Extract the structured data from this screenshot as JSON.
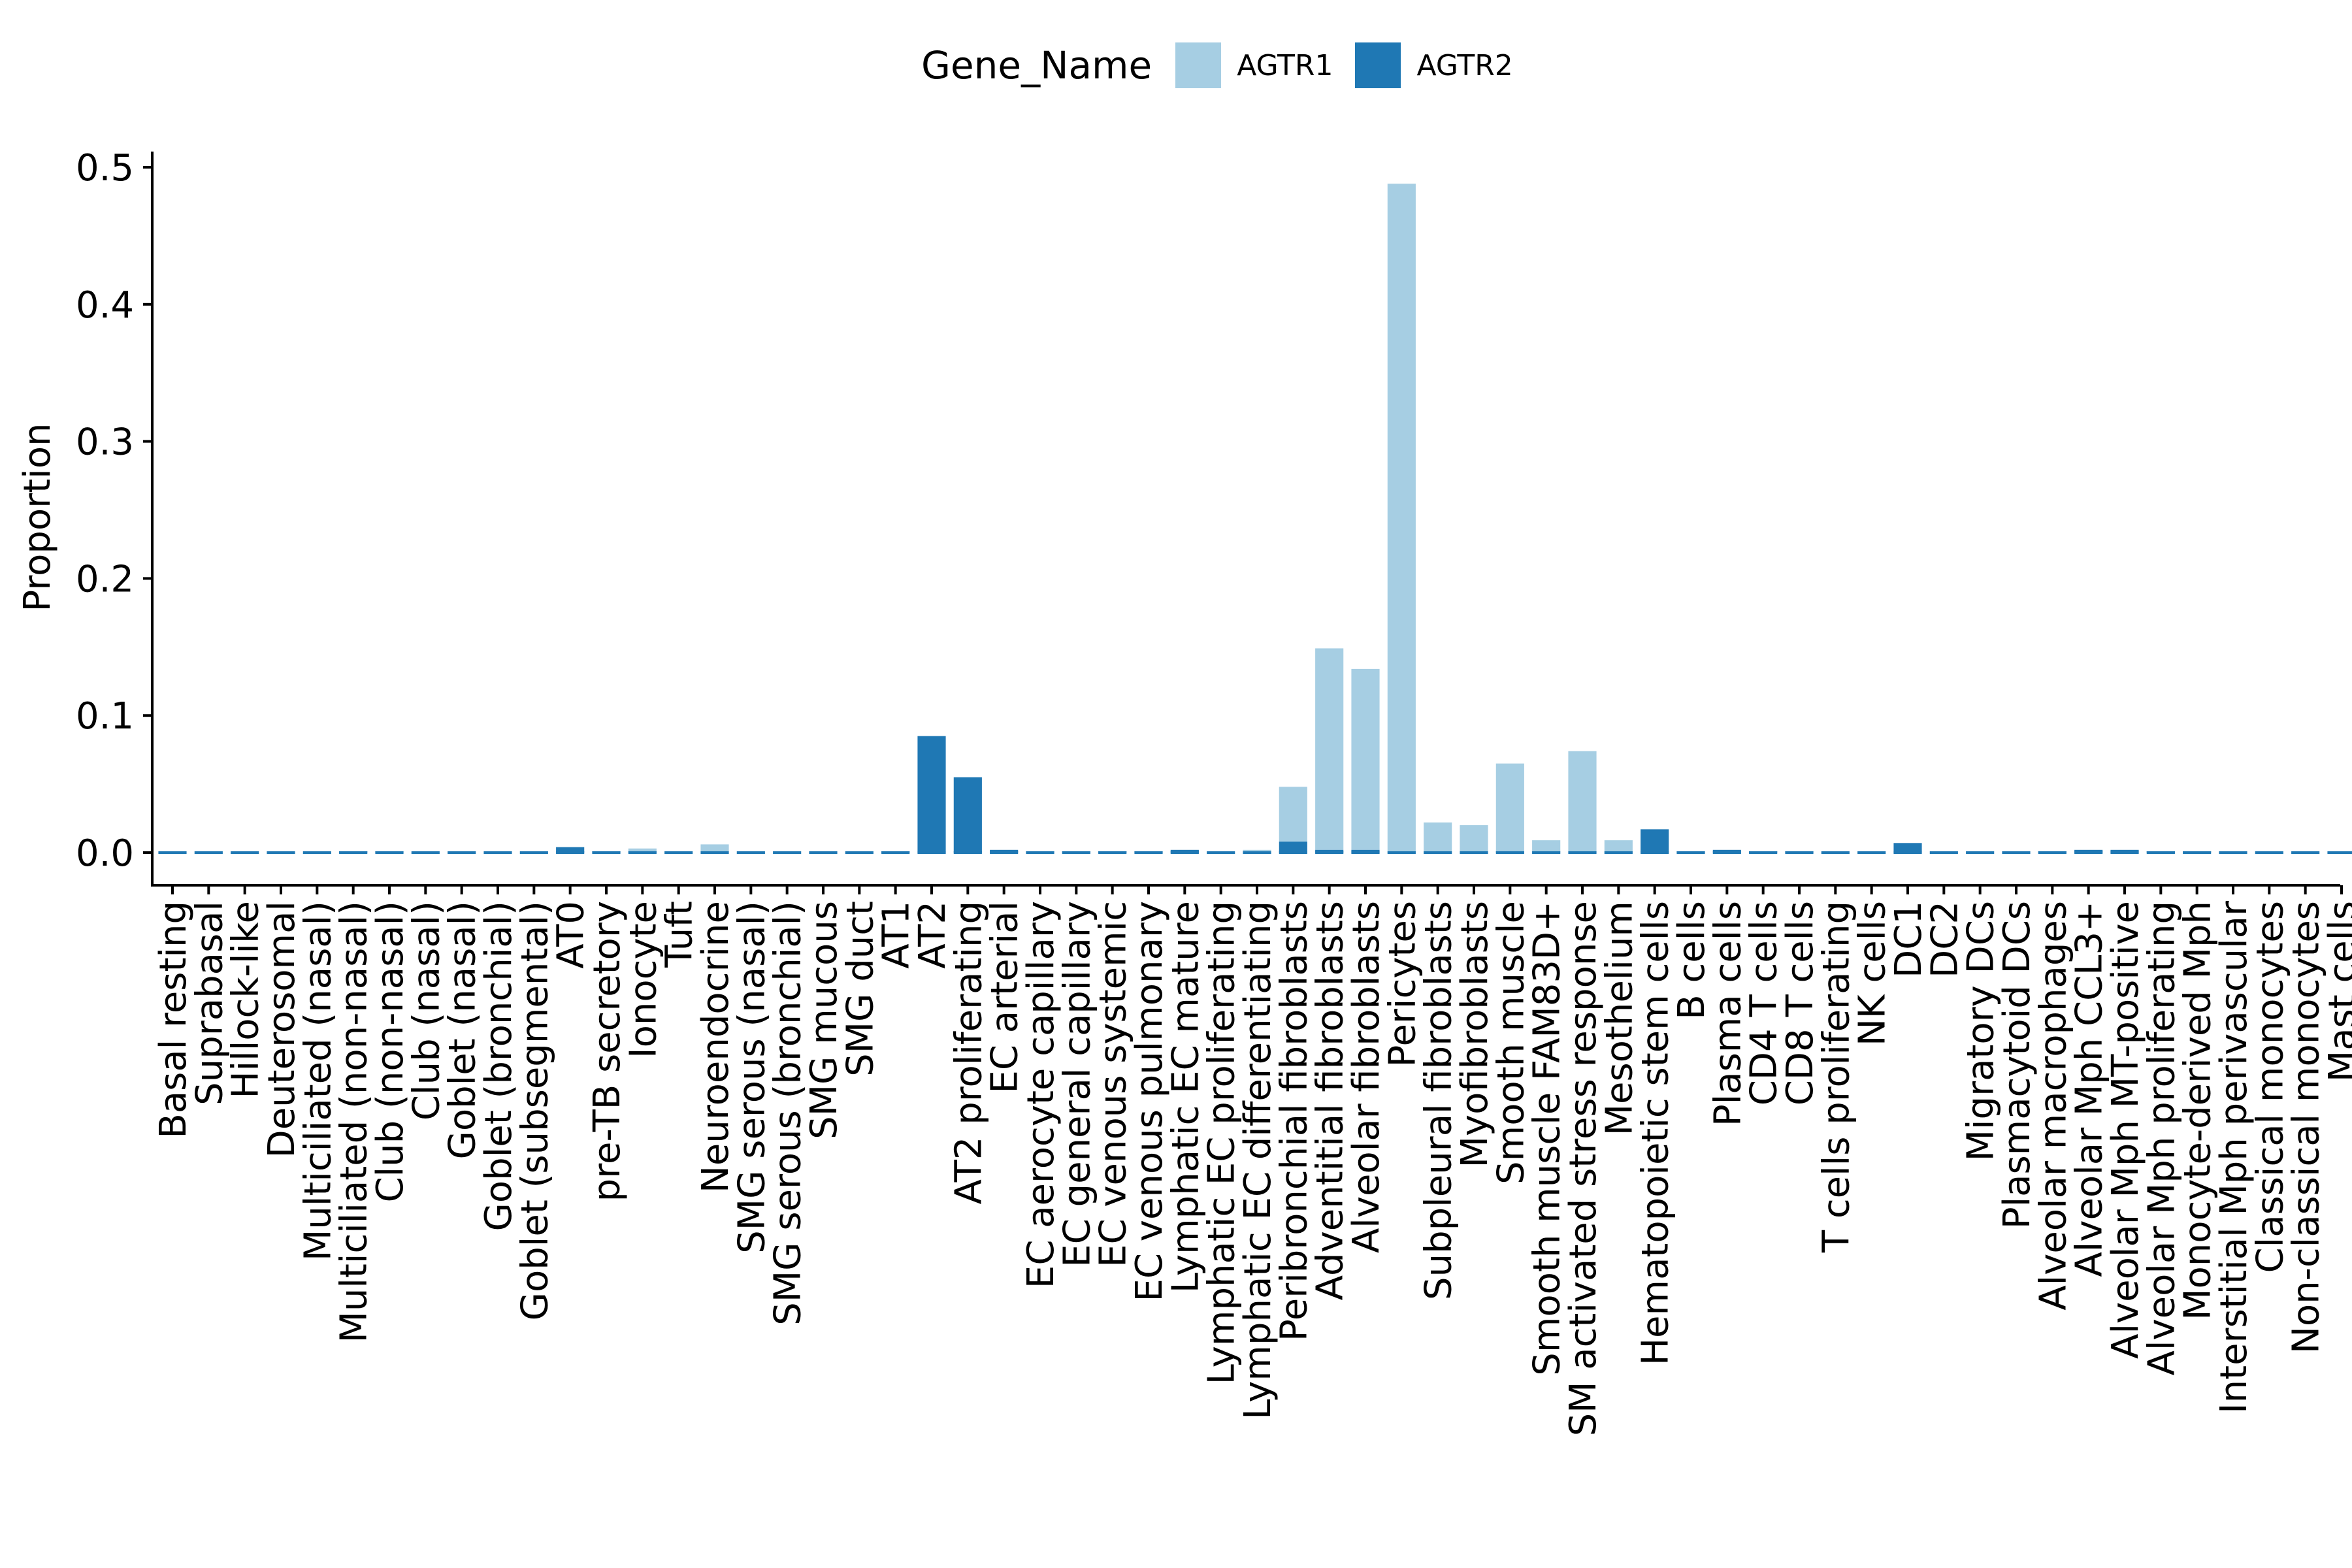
{
  "chart_data": {
    "type": "bar",
    "stacked": true,
    "ylabel": "Proportion",
    "xlabel": "",
    "ylim": [
      0,
      0.5
    ],
    "yticks": [
      "0.0",
      "0.1",
      "0.2",
      "0.3",
      "0.4",
      "0.5"
    ],
    "legend": {
      "title": "Gene_Name",
      "position": "top"
    },
    "categories": [
      "Basal resting",
      "Suprabasal",
      "Hillock-like",
      "Deuterosomal",
      "Multiciliated (nasal)",
      "Multiciliated (non-nasal)",
      "Club (non-nasal)",
      "Club (nasal)",
      "Goblet (nasal)",
      "Goblet (bronchial)",
      "Goblet (subsegmental)",
      "AT0",
      "pre-TB secretory",
      "Ionocyte",
      "Tuft",
      "Neuroendocrine",
      "SMG serous (nasal)",
      "SMG serous (bronchial)",
      "SMG mucous",
      "SMG duct",
      "AT1",
      "AT2",
      "AT2 proliferating",
      "EC arterial",
      "EC aerocyte capillary",
      "EC general capillary",
      "EC venous systemic",
      "EC venous pulmonary",
      "Lymphatic EC mature",
      "Lymphatic EC proliferating",
      "Lymphatic EC differentiating",
      "Peribronchial fibroblasts",
      "Adventitial fibroblasts",
      "Alveolar fibroblasts",
      "Pericytes",
      "Subpleural fibroblasts",
      "Myofibroblasts",
      "Smooth muscle",
      "Smooth muscle FAM83D+",
      "SM activated stress response",
      "Mesothelium",
      "Hematopoietic stem cells",
      "B cells",
      "Plasma cells",
      "CD4 T cells",
      "CD8 T cells",
      "T cells proliferating",
      "NK cells",
      "DC1",
      "DC2",
      "Migratory DCs",
      "Plasmacytoid DCs",
      "Alveolar macrophages",
      "Alveolar Mph CCL3+",
      "Alveolar Mph MT-positive",
      "Alveolar Mph proliferating",
      "Monocyte-derived Mph",
      "Interstitial Mph perivascular",
      "Classical monocytes",
      "Non-classical monocytes",
      "Mast cells"
    ],
    "series": [
      {
        "name": "AGTR1",
        "color": "#a6cee3",
        "values": [
          0,
          0,
          0,
          0,
          0,
          0,
          0,
          0,
          0,
          0,
          0,
          0,
          0,
          0.002,
          0,
          0.006,
          0,
          0,
          0,
          0,
          0,
          0,
          0,
          0,
          0,
          0,
          0,
          0,
          0,
          0,
          0.002,
          0.04,
          0.147,
          0.132,
          0.488,
          0.022,
          0.02,
          0.064,
          0.009,
          0.074,
          0.009,
          0,
          0,
          0,
          0,
          0,
          0,
          0,
          0,
          0,
          0,
          0,
          0,
          0,
          0,
          0,
          0,
          0,
          0,
          0,
          0
        ]
      },
      {
        "name": "AGTR2",
        "color": "#1f78b4",
        "values": [
          0,
          0,
          0,
          0,
          0,
          0.001,
          0.001,
          0,
          0,
          0,
          0,
          0.004,
          0.001,
          0.001,
          0,
          0,
          0,
          0,
          0,
          0,
          0.001,
          0.085,
          0.055,
          0.002,
          0.001,
          0.001,
          0.001,
          0.001,
          0.002,
          0,
          0,
          0.008,
          0.002,
          0.002,
          0,
          0,
          0,
          0.001,
          0,
          0,
          0,
          0.017,
          0.001,
          0.002,
          0.001,
          0.001,
          0,
          0,
          0.007,
          0,
          0,
          0,
          0.001,
          0.002,
          0.002,
          0.001,
          0.001,
          0,
          0,
          0,
          0
        ]
      }
    ]
  }
}
